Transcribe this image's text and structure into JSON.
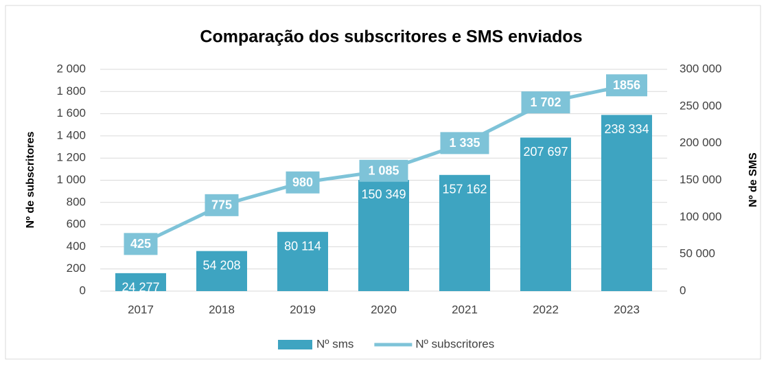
{
  "chart_data": {
    "type": "bar-line",
    "title": "Comparação dos subscritores e SMS enviados",
    "ylabel": "Nº de subscritores",
    "y2label": "Nº de SMS",
    "categories": [
      "2017",
      "2018",
      "2019",
      "2020",
      "2021",
      "2022",
      "2023"
    ],
    "series": [
      {
        "name": "Nº sms",
        "type": "bar",
        "axis": "y2",
        "color": "#3ea4c1",
        "values": [
          24277,
          54208,
          80114,
          150349,
          157162,
          207697,
          238334
        ],
        "value_labels": [
          "24 277",
          "54 208",
          "80 114",
          "150 349",
          "157 162",
          "207 697",
          "238 334"
        ]
      },
      {
        "name": "Nº subscritores",
        "type": "line",
        "axis": "y",
        "color": "#7ec3d8",
        "values": [
          425,
          775,
          980,
          1085,
          1335,
          1702,
          1856
        ],
        "value_labels": [
          "425",
          "775",
          "980",
          "1 085",
          "1 335",
          "1 702",
          "1856"
        ]
      }
    ],
    "ylim": [
      0,
      2000
    ],
    "yticks": [
      0,
      200,
      400,
      600,
      800,
      {
        "value": 1000,
        "label": "1 000"
      },
      {
        "value": 1200,
        "label": "1 200"
      },
      {
        "value": 1400,
        "label": "1 400"
      },
      {
        "value": 1600,
        "label": "1 600"
      },
      {
        "value": 1800,
        "label": "1 800"
      },
      {
        "value": 2000,
        "label": "2 000"
      }
    ],
    "y2lim": [
      0,
      300000
    ],
    "y2ticks": [
      0,
      {
        "value": 50000,
        "label": "50 000"
      },
      {
        "value": 100000,
        "label": "100 000"
      },
      {
        "value": 150000,
        "label": "150 000"
      },
      {
        "value": 200000,
        "label": "200 000"
      },
      {
        "value": 250000,
        "label": "250 000"
      },
      {
        "value": 300000,
        "label": "300 000"
      }
    ],
    "grid": true,
    "legend": "bottom"
  }
}
